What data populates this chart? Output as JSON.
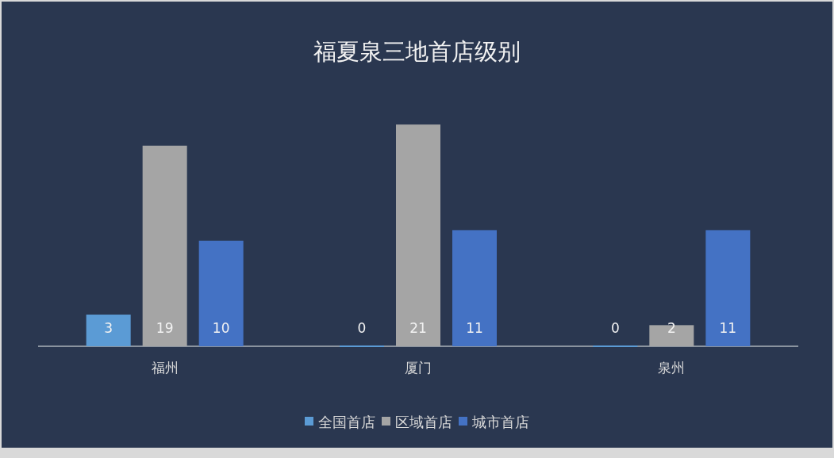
{
  "chart_data": {
    "type": "bar",
    "title": "福夏泉三地首店级别",
    "categories": [
      "福州",
      "厦门",
      "泉州"
    ],
    "series": [
      {
        "name": "全国首店",
        "color": "#5b9bd5",
        "values": [
          3,
          0,
          0
        ]
      },
      {
        "name": "区域首店",
        "color": "#a5a5a5",
        "values": [
          19,
          21,
          2
        ]
      },
      {
        "name": "城市首店",
        "color": "#4472c4",
        "values": [
          10,
          11,
          11
        ]
      }
    ],
    "data_labels": true,
    "legend": "bottom",
    "grid": false
  }
}
